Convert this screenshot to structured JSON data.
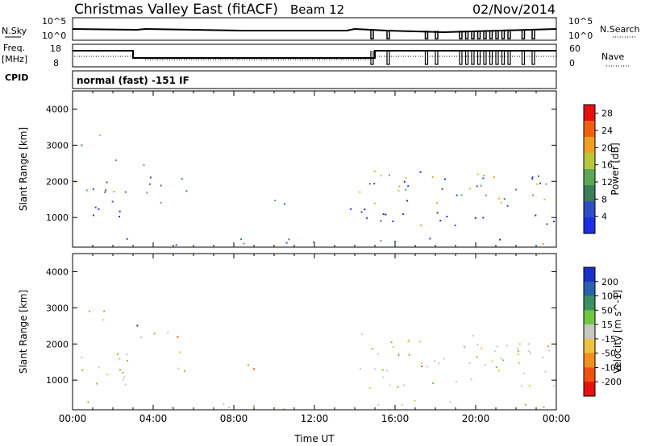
{
  "header": {
    "site": "Christmas Valley East (fitACF)",
    "beam": "Beam 12",
    "date": "02/Nov/2014"
  },
  "panels": {
    "nsky_label": "N.Sky",
    "nsearch_label": "N.Search",
    "nsky_ticks": [
      "10^5",
      "10^0"
    ],
    "nsearch_ticks": [
      "10^5",
      "10^0"
    ],
    "freq_label_1": "Freq.",
    "freq_label_2": "[MHz]",
    "freq_ticks": [
      "18",
      "8"
    ],
    "nave_label": "Nave",
    "nave_ticks": [
      "60",
      "0"
    ],
    "cpid_label": "CPID",
    "cpid_text": "normal (fast) -151 IF"
  },
  "chart_data": [
    {
      "type": "heatmap",
      "quantity": "Power",
      "xlabel": "",
      "ylabel": "Slant Range [km]",
      "colorbar_label": "Power [dB]",
      "xlim": [
        "00:00",
        "24:00"
      ],
      "ylim": [
        180,
        4500
      ],
      "yticks": [
        1000,
        2000,
        3000,
        4000
      ],
      "colorbar_ticks": [
        4,
        8,
        12,
        16,
        20,
        24,
        28
      ],
      "colorbar_range": [
        0,
        30
      ],
      "colors": [
        "#1e2ee6",
        "#2e4fc4",
        "#3a7f5a",
        "#5aaa55",
        "#b8c83a",
        "#f0a020",
        "#f06010",
        "#e81010"
      ]
    },
    {
      "type": "heatmap",
      "quantity": "Velocity",
      "xlabel": "Time UT",
      "ylabel": "Slant Range [km]",
      "colorbar_label": "Velocity [m s^-1]",
      "xlim": [
        "00:00",
        "24:00"
      ],
      "ylim": [
        180,
        4500
      ],
      "yticks": [
        1000,
        2000,
        3000,
        4000
      ],
      "xticks": [
        "00:00",
        "04:00",
        "08:00",
        "12:00",
        "16:00",
        "20:00",
        "00:00"
      ],
      "colorbar_ticks": [
        200,
        100,
        50,
        15,
        -15,
        -50,
        -100,
        -200
      ],
      "colors": [
        "#1830c8",
        "#2a60b0",
        "#3a9060",
        "#70c840",
        "#c8c8c0",
        "#f0c040",
        "#f09020",
        "#f05010",
        "#e81010"
      ]
    }
  ]
}
